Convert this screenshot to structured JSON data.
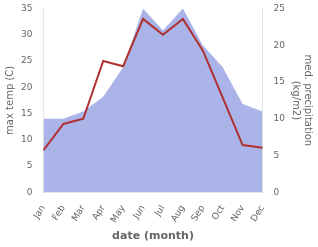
{
  "chart_data": {
    "type": "line",
    "categories": [
      "Jan",
      "Feb",
      "Mar",
      "Apr",
      "May",
      "Jun",
      "Jul",
      "Aug",
      "Sep",
      "Oct",
      "Nov",
      "Dec"
    ],
    "series": [
      {
        "type": "area",
        "color": "#aab4e8",
        "axis": "y2",
        "values": [
          10.0,
          10.0,
          11.0,
          13.0,
          17.0,
          25.0,
          22.0,
          25.0,
          20.0,
          17.0,
          12.0,
          11.0
        ]
      },
      {
        "type": "line",
        "color": "#b03030",
        "values": [
          8.0,
          13.0,
          14.0,
          25.0,
          24.0,
          33.0,
          30.0,
          33.0,
          27.0,
          18.0,
          9.0,
          8.5
        ]
      }
    ],
    "xlabel": "date (month)",
    "ylabel": "max temp (C)",
    "y2label": "med. precipitation\n(kg/m2)",
    "ylim": [
      0,
      35
    ],
    "yticks": [
      0,
      5,
      10,
      15,
      20,
      25,
      30,
      35
    ],
    "y2lim": [
      0,
      25
    ],
    "y2ticks": [
      0,
      5,
      10,
      15,
      20,
      25
    ],
    "grid": false
  }
}
